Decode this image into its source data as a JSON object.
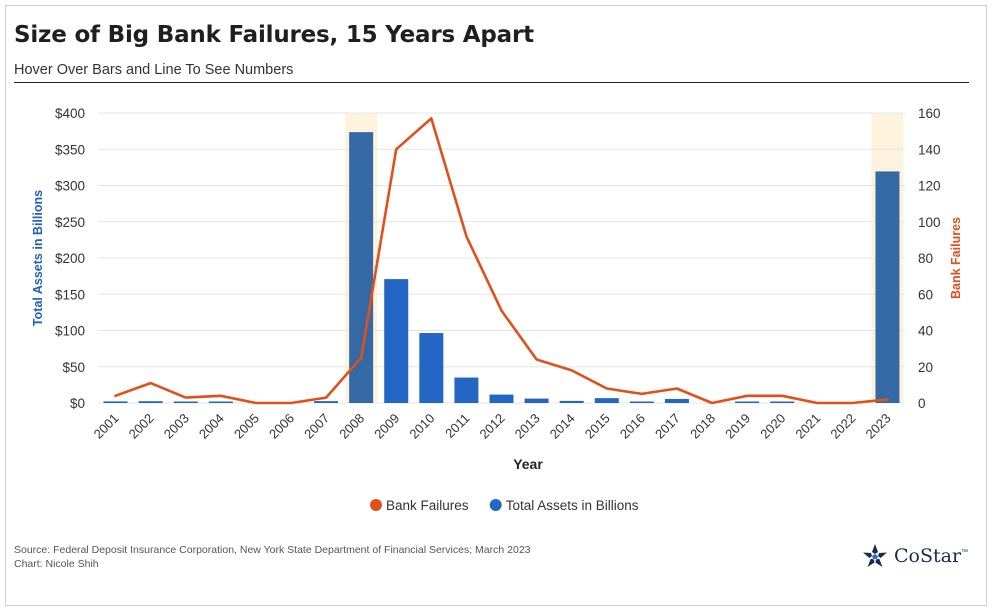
{
  "header": {
    "title": "Size of Big Bank Failures, 15 Years Apart",
    "subtitle": "Hover Over Bars and Line To See Numbers"
  },
  "footer": {
    "source": "Source: Federal Deposit Insurance Corporation, New York State Department of Financial Services; March 2023",
    "credit": "Chart: Nicole Shih",
    "logo_text": "CoStar",
    "logo_tm": "™"
  },
  "colors": {
    "bars": "#2366c4",
    "bars_highlighted": "#3469a6",
    "highlight_band": "#fdf3dd",
    "line": "#e2501a",
    "left_axis_title": "#2360b8",
    "right_axis_title": "#e2501a",
    "grid": "#e4e4e4",
    "logo": "#1a2b4c"
  },
  "chart_data": {
    "type": "bar",
    "combo": "bar-line dual axis",
    "categories": [
      "2001",
      "2002",
      "2003",
      "2004",
      "2005",
      "2006",
      "2007",
      "2008",
      "2009",
      "2010",
      "2011",
      "2012",
      "2013",
      "2014",
      "2015",
      "2016",
      "2017",
      "2018",
      "2019",
      "2020",
      "2021",
      "2022",
      "2023"
    ],
    "series": [
      {
        "name": "Total Assets in Billions",
        "type": "bar",
        "axis": "left",
        "values": [
          2.2,
          2.5,
          1.1,
          0.2,
          0,
          0,
          2.6,
          373.6,
          170.9,
          96.5,
          35.1,
          11.6,
          6.1,
          2.9,
          6.7,
          0.3,
          5.6,
          0,
          0.2,
          0.5,
          0,
          0,
          319.4
        ]
      },
      {
        "name": "Bank Failures",
        "type": "line",
        "axis": "right",
        "values": [
          4,
          11,
          3,
          4,
          0,
          0,
          3,
          25,
          140,
          157,
          92,
          51,
          24,
          18,
          8,
          5,
          8,
          0,
          4,
          4,
          0,
          0,
          2
        ]
      }
    ],
    "highlighted_categories": [
      "2008",
      "2023"
    ],
    "xlabel": "Year",
    "ylabel": "Total Assets in Billions",
    "y2label": "Bank Failures",
    "ylim": [
      0,
      400
    ],
    "y2lim": [
      0,
      160
    ],
    "yticks": [
      "$0",
      "$50",
      "$100",
      "$150",
      "$200",
      "$250",
      "$300",
      "$350",
      "$400"
    ],
    "yticks_values": [
      0,
      50,
      100,
      150,
      200,
      250,
      300,
      350,
      400
    ],
    "y2ticks": [
      "0",
      "20",
      "40",
      "60",
      "80",
      "100",
      "120",
      "140",
      "160"
    ],
    "y2ticks_values": [
      0,
      20,
      40,
      60,
      80,
      100,
      120,
      140,
      160
    ],
    "grid": "horizontal",
    "legend": {
      "placement": "bottom-center",
      "items": [
        "Bank Failures",
        "Total Assets in Billions"
      ]
    }
  }
}
